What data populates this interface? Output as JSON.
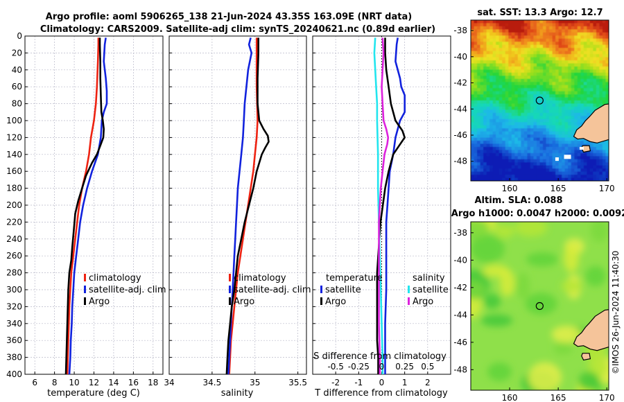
{
  "title": {
    "line1": "Argo profile: aoml 5906265_138 21-Jun-2024 43.35S 163.09E (NRT data)",
    "line2": "Climatology: CARS2009. Satellite-adj clim: synTS_20240621.nc (0.89d earlier)"
  },
  "colors": {
    "climatology": "#ee2211",
    "satellite": "#1122dd",
    "argo": "#000000",
    "sal_satellite": "#22e5ee",
    "sal_argo": "#dd22dd"
  },
  "chart_data": [
    {
      "type": "line",
      "name": "temperature-profile",
      "xlabel": "temperature (deg C)",
      "xlim": [
        5,
        19
      ],
      "xticks": [
        6,
        8,
        10,
        12,
        14,
        16,
        18
      ],
      "ylim": [
        0,
        400
      ],
      "yticks": [
        0,
        20,
        40,
        60,
        80,
        100,
        120,
        140,
        160,
        180,
        200,
        220,
        240,
        260,
        280,
        300,
        320,
        340,
        360,
        380,
        400
      ],
      "legend": [
        "climatology",
        "satellite-adj. clim",
        "Argo"
      ],
      "series": [
        {
          "name": "climatology",
          "color": "#ee2211",
          "points": [
            [
              12.45,
              2
            ],
            [
              12.45,
              10
            ],
            [
              12.4,
              30
            ],
            [
              12.3,
              60
            ],
            [
              12.2,
              80
            ],
            [
              12.0,
              100
            ],
            [
              11.7,
              120
            ],
            [
              11.5,
              140
            ],
            [
              11.2,
              160
            ],
            [
              10.8,
              180
            ],
            [
              10.5,
              200
            ],
            [
              10.3,
              220
            ],
            [
              10.1,
              240
            ],
            [
              9.9,
              260
            ],
            [
              9.7,
              280
            ],
            [
              9.6,
              300
            ],
            [
              9.5,
              320
            ],
            [
              9.45,
              340
            ],
            [
              9.4,
              360
            ],
            [
              9.35,
              380
            ],
            [
              9.3,
              400
            ]
          ]
        },
        {
          "name": "satellite-adj. clim",
          "color": "#1122dd",
          "points": [
            [
              13.2,
              2
            ],
            [
              13.1,
              10
            ],
            [
              13.0,
              30
            ],
            [
              13.2,
              50
            ],
            [
              13.3,
              65
            ],
            [
              13.3,
              80
            ],
            [
              13.0,
              90
            ],
            [
              12.8,
              100
            ],
            [
              12.7,
              120
            ],
            [
              12.4,
              140
            ],
            [
              11.8,
              160
            ],
            [
              11.3,
              180
            ],
            [
              10.9,
              200
            ],
            [
              10.6,
              220
            ],
            [
              10.4,
              240
            ],
            [
              10.2,
              260
            ],
            [
              10.0,
              280
            ],
            [
              9.9,
              300
            ],
            [
              9.8,
              320
            ],
            [
              9.75,
              340
            ],
            [
              9.65,
              360
            ],
            [
              9.6,
              380
            ],
            [
              9.5,
              400
            ]
          ]
        },
        {
          "name": "Argo",
          "color": "#000000",
          "points": [
            [
              12.6,
              2
            ],
            [
              12.6,
              10
            ],
            [
              12.65,
              30
            ],
            [
              12.65,
              50
            ],
            [
              12.7,
              70
            ],
            [
              12.75,
              90
            ],
            [
              12.9,
              100
            ],
            [
              13.0,
              110
            ],
            [
              12.95,
              120
            ],
            [
              12.7,
              128
            ],
            [
              12.3,
              140
            ],
            [
              11.8,
              150
            ],
            [
              11.2,
              165
            ],
            [
              10.8,
              180
            ],
            [
              10.4,
              195
            ],
            [
              10.1,
              210
            ],
            [
              9.95,
              230
            ],
            [
              9.8,
              250
            ],
            [
              9.7,
              265
            ],
            [
              9.5,
              280
            ],
            [
              9.4,
              300
            ],
            [
              9.35,
              320
            ],
            [
              9.3,
              340
            ],
            [
              9.25,
              360
            ],
            [
              9.2,
              380
            ],
            [
              9.15,
              400
            ]
          ]
        }
      ]
    },
    {
      "type": "line",
      "name": "salinity-profile",
      "xlabel": "salinity",
      "xlim": [
        34,
        35.6
      ],
      "xticks": [
        34,
        34.5,
        35,
        35.5
      ],
      "ylim": [
        0,
        400
      ],
      "legend": [
        "climatology",
        "satellite-adj. clim",
        "Argo"
      ],
      "series": [
        {
          "name": "climatology",
          "color": "#ee2211",
          "points": [
            [
              35.02,
              2
            ],
            [
              35.02,
              20
            ],
            [
              35.02,
              60
            ],
            [
              35.03,
              100
            ],
            [
              35.02,
              120
            ],
            [
              35.0,
              140
            ],
            [
              34.98,
              160
            ],
            [
              34.95,
              180
            ],
            [
              34.92,
              200
            ],
            [
              34.89,
              220
            ],
            [
              34.86,
              240
            ],
            [
              34.83,
              260
            ],
            [
              34.8,
              280
            ],
            [
              34.78,
              300
            ],
            [
              34.76,
              320
            ],
            [
              34.74,
              340
            ],
            [
              34.72,
              360
            ],
            [
              34.71,
              380
            ],
            [
              34.7,
              400
            ]
          ]
        },
        {
          "name": "satellite-adj. clim",
          "color": "#1122dd",
          "points": [
            [
              34.95,
              2
            ],
            [
              34.93,
              10
            ],
            [
              34.96,
              20
            ],
            [
              34.92,
              40
            ],
            [
              34.9,
              60
            ],
            [
              34.88,
              80
            ],
            [
              34.87,
              100
            ],
            [
              34.86,
              120
            ],
            [
              34.84,
              140
            ],
            [
              34.82,
              160
            ],
            [
              34.8,
              180
            ],
            [
              34.79,
              200
            ],
            [
              34.78,
              220
            ],
            [
              34.77,
              240
            ],
            [
              34.76,
              260
            ],
            [
              34.75,
              280
            ],
            [
              34.74,
              300
            ],
            [
              34.73,
              320
            ],
            [
              34.72,
              340
            ],
            [
              34.71,
              360
            ],
            [
              34.7,
              380
            ],
            [
              34.69,
              400
            ]
          ]
        },
        {
          "name": "Argo",
          "color": "#000000",
          "points": [
            [
              35.04,
              2
            ],
            [
              35.04,
              20
            ],
            [
              35.03,
              50
            ],
            [
              35.03,
              80
            ],
            [
              35.05,
              100
            ],
            [
              35.1,
              110
            ],
            [
              35.15,
              118
            ],
            [
              35.16,
              125
            ],
            [
              35.12,
              132
            ],
            [
              35.08,
              140
            ],
            [
              35.02,
              160
            ],
            [
              34.98,
              180
            ],
            [
              34.93,
              200
            ],
            [
              34.88,
              220
            ],
            [
              34.84,
              240
            ],
            [
              34.8,
              260
            ],
            [
              34.78,
              280
            ],
            [
              34.76,
              300
            ],
            [
              34.73,
              320
            ],
            [
              34.71,
              340
            ],
            [
              34.69,
              360
            ],
            [
              34.68,
              380
            ],
            [
              34.67,
              400
            ]
          ]
        }
      ]
    },
    {
      "type": "line",
      "name": "difference-profile",
      "xlabel": "T difference from climatology",
      "xlabel2": "S difference from climatology",
      "xlim": [
        -3,
        3
      ],
      "xticks": [
        -2,
        -1,
        0,
        1,
        2
      ],
      "sticks": [
        "-0.5",
        "-0.25",
        "0",
        "0.25",
        "0.5"
      ],
      "ylim": [
        0,
        400
      ],
      "legend_temperature": {
        "header": "temperature",
        "items": [
          "satellite",
          "Argo"
        ]
      },
      "legend_salinity": {
        "header": "salinity",
        "items": [
          "satellite",
          "Argo"
        ]
      },
      "series": [
        {
          "name": "temperature satellite",
          "color": "#1122dd",
          "points": [
            [
              0.7,
              2
            ],
            [
              0.65,
              10
            ],
            [
              0.6,
              30
            ],
            [
              0.8,
              50
            ],
            [
              0.85,
              60
            ],
            [
              1.0,
              70
            ],
            [
              1.0,
              90
            ],
            [
              0.8,
              100
            ],
            [
              0.6,
              120
            ],
            [
              0.5,
              140
            ],
            [
              0.35,
              160
            ],
            [
              0.3,
              180
            ],
            [
              0.25,
              200
            ],
            [
              0.2,
              220
            ],
            [
              0.2,
              260
            ],
            [
              0.2,
              300
            ],
            [
              0.15,
              340
            ],
            [
              0.15,
              380
            ],
            [
              0.15,
              400
            ]
          ]
        },
        {
          "name": "temperature Argo",
          "color": "#000000",
          "points": [
            [
              0.15,
              2
            ],
            [
              0.15,
              20
            ],
            [
              0.2,
              40
            ],
            [
              0.3,
              60
            ],
            [
              0.4,
              80
            ],
            [
              0.6,
              100
            ],
            [
              0.9,
              112
            ],
            [
              1.0,
              120
            ],
            [
              0.8,
              128
            ],
            [
              0.5,
              140
            ],
            [
              0.3,
              160
            ],
            [
              0.15,
              180
            ],
            [
              0.05,
              200
            ],
            [
              -0.05,
              220
            ],
            [
              -0.1,
              240
            ],
            [
              -0.15,
              260
            ],
            [
              -0.2,
              280
            ],
            [
              -0.2,
              300
            ],
            [
              -0.2,
              320
            ],
            [
              -0.2,
              340
            ],
            [
              -0.2,
              360
            ],
            [
              -0.15,
              380
            ],
            [
              -0.15,
              400
            ]
          ]
        },
        {
          "name": "salinity satellite",
          "color": "#22e5ee",
          "points": [
            [
              -0.07,
              2
            ],
            [
              -0.08,
              20
            ],
            [
              -0.07,
              40
            ],
            [
              -0.06,
              60
            ],
            [
              -0.05,
              80
            ],
            [
              -0.05,
              100
            ],
            [
              -0.04,
              140
            ],
            [
              -0.04,
              180
            ],
            [
              -0.03,
              220
            ],
            [
              -0.02,
              260
            ],
            [
              -0.01,
              300
            ],
            [
              0.0,
              340
            ],
            [
              0.01,
              380
            ],
            [
              0.01,
              400
            ]
          ]
        },
        {
          "name": "salinity Argo",
          "color": "#dd22dd",
          "points": [
            [
              0.01,
              2
            ],
            [
              0.02,
              20
            ],
            [
              0.01,
              40
            ],
            [
              0.0,
              60
            ],
            [
              0.01,
              80
            ],
            [
              0.02,
              100
            ],
            [
              0.05,
              110
            ],
            [
              0.07,
              120
            ],
            [
              0.06,
              128
            ],
            [
              0.03,
              140
            ],
            [
              0.01,
              160
            ],
            [
              -0.01,
              180
            ],
            [
              -0.02,
              200
            ],
            [
              -0.03,
              220
            ],
            [
              -0.03,
              260
            ],
            [
              -0.03,
              300
            ],
            [
              -0.03,
              340
            ],
            [
              -0.02,
              380
            ],
            [
              -0.02,
              400
            ]
          ]
        }
      ]
    },
    {
      "type": "heatmap",
      "name": "sst-map",
      "title": "sat. SST: 13.3 Argo: 12.7",
      "xticks": [
        "160",
        "165",
        "170"
      ],
      "yticks": [
        "-38",
        "-40",
        "-42",
        "-44",
        "-46",
        "-48"
      ],
      "lon_range": [
        156,
        170.2
      ],
      "lat_range": [
        -49.5,
        -37.2
      ],
      "marker": {
        "lon": 163.09,
        "lat": -43.35
      }
    },
    {
      "type": "heatmap",
      "name": "sla-map",
      "title": "Altim. SLA: 0.088",
      "subtitle": "Argo h1000: 0.0047 h2000: 0.0092",
      "xticks": [
        "160",
        "165",
        "170"
      ],
      "yticks": [
        "-38",
        "-40",
        "-42",
        "-44",
        "-46",
        "-48"
      ],
      "lon_range": [
        156,
        170.2
      ],
      "lat_range": [
        -49.5,
        -37.2
      ],
      "marker": {
        "lon": 163.09,
        "lat": -43.35
      }
    }
  ],
  "credit": "©IMOS 26-Jun-2024 11:40:30"
}
